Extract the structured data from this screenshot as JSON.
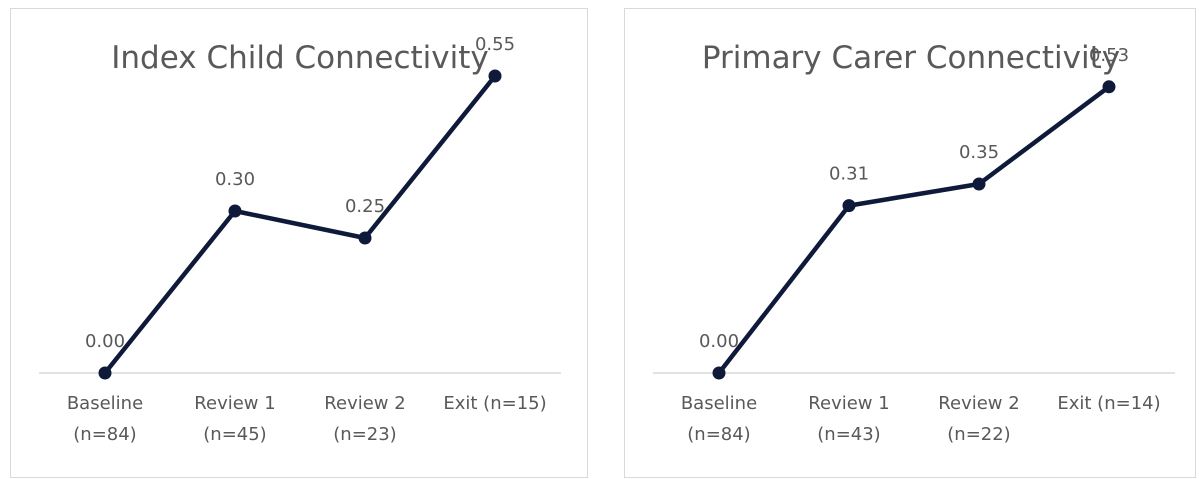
{
  "colors": {
    "series": "#0f1a3a",
    "text": "#595959",
    "axis": "#d9d9d9"
  },
  "chart_data": [
    {
      "type": "line",
      "title": "Index Child Connectivity",
      "categories": [
        [
          "Baseline",
          "(n=84)"
        ],
        [
          "Review 1",
          "(n=45)"
        ],
        [
          "Review 2",
          "(n=23)"
        ],
        [
          "Exit (n=15)"
        ]
      ],
      "values": [
        0.0,
        0.3,
        0.25,
        0.55
      ],
      "data_labels": [
        "0.00",
        "0.30",
        "0.25",
        "0.55"
      ],
      "ylim": [
        0,
        0.6
      ],
      "grid": false,
      "legend": "none"
    },
    {
      "type": "line",
      "title": "Primary Carer Connectivity",
      "categories": [
        [
          "Baseline",
          "(n=84)"
        ],
        [
          "Review 1",
          "(n=43)"
        ],
        [
          "Review 2",
          "(n=22)"
        ],
        [
          "Exit (n=14)"
        ]
      ],
      "values": [
        0.0,
        0.31,
        0.35,
        0.53
      ],
      "data_labels": [
        "0.00",
        "0.31",
        "0.35",
        "0.53"
      ],
      "ylim": [
        0,
        0.6
      ],
      "grid": false,
      "legend": "none"
    }
  ]
}
